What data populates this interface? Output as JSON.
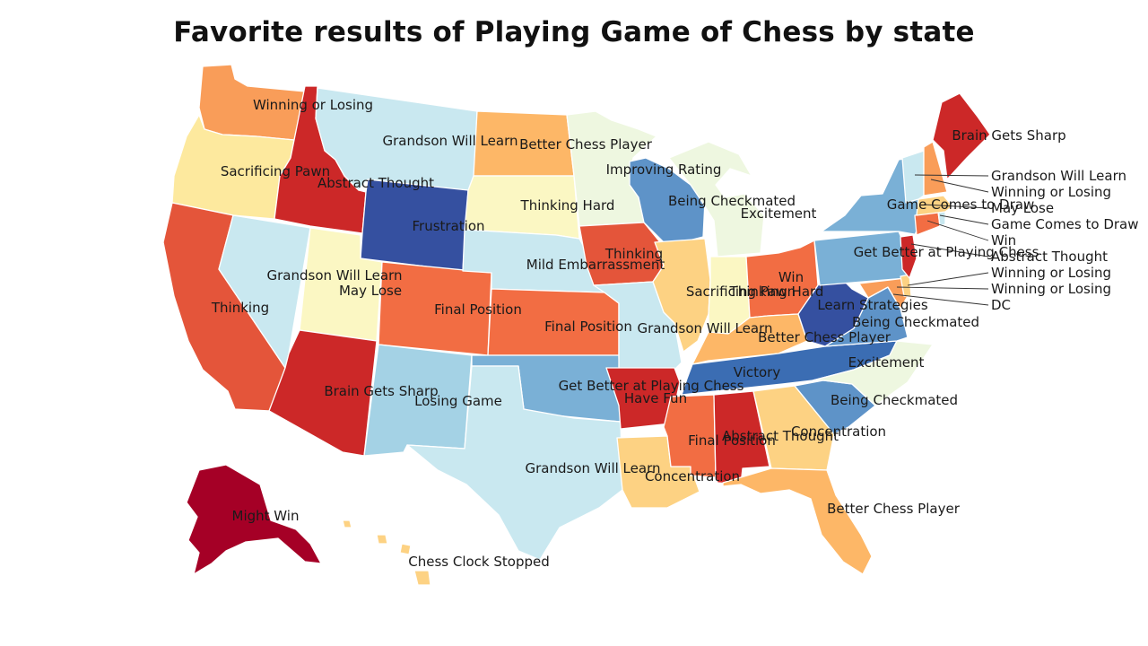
{
  "title": "Favorite results of Playing Game of Chess by state",
  "palette": {
    "dark_red": "#a50026",
    "red": "#cc2828",
    "orange_red": "#e4553a",
    "orange": "#f26d43",
    "light_orange": "#f99d59",
    "peach": "#fdb767",
    "sand": "#fdd283",
    "pale_yellow": "#fde99e",
    "cream": "#fbf7c3",
    "pale_green": "#eef7e0",
    "pale_blue": "#c9e8f0",
    "light_blue": "#a4d2e5",
    "mid_blue": "#7ab0d6",
    "blue": "#5e93c8",
    "dark_blue": "#3b6db3",
    "navy": "#3550a0"
  },
  "states": {
    "WA": "Winning or Losing",
    "OR": "Sacrificing Pawn",
    "ID": "Abstract Thought",
    "MT": "Grandson Will Learn",
    "WY": "Frustration",
    "CA": "Thinking",
    "NV": "Thinking",
    "UT": "May Lose",
    "UT2": "Grandson Will Learn",
    "AZ": "Brain Gets Sharp",
    "CO": "Final Position",
    "NM": "Losing Game",
    "ND": "Better Chess Player",
    "SD": "Thinking Hard",
    "NE": "Mild Embarrassment",
    "KS": "Final Position",
    "OK": "Get Better at Playing Chess",
    "TX": "Grandson Will Learn",
    "MN": "Improving Rating",
    "IA": "Thinking",
    "MO": "Grandson Will Learn",
    "AR": "Have Fun",
    "LA": "Concentration",
    "WI": "Being Checkmated",
    "IL": "Sacrificing Pawn",
    "MI": "Excitement",
    "IN": "Thinking Hard",
    "OH": "Win",
    "KY": "Better Chess Player",
    "TN": "Victory",
    "MS": "Final Position",
    "AL": "Abstract Thought",
    "GA": "Concentration",
    "FL": "Better Chess Player",
    "SC": "Being Checkmated",
    "NC": "Excitement",
    "VA": "Being Checkmated",
    "WV": "Learn Strategies",
    "PA": "Get Better at Playing Chess",
    "NY": "Game Comes to Draw",
    "ME": "Brain Gets Sharp",
    "AK": "Might Win",
    "HI": "Chess Clock Stopped"
  },
  "callouts": [
    "Grandson Will Learn",
    "Winning or Losing",
    "May Lose",
    "Game Comes to Draw",
    "Win",
    "Abstract Thought",
    "Winning or Losing",
    "Winning or Losing",
    "DC"
  ]
}
